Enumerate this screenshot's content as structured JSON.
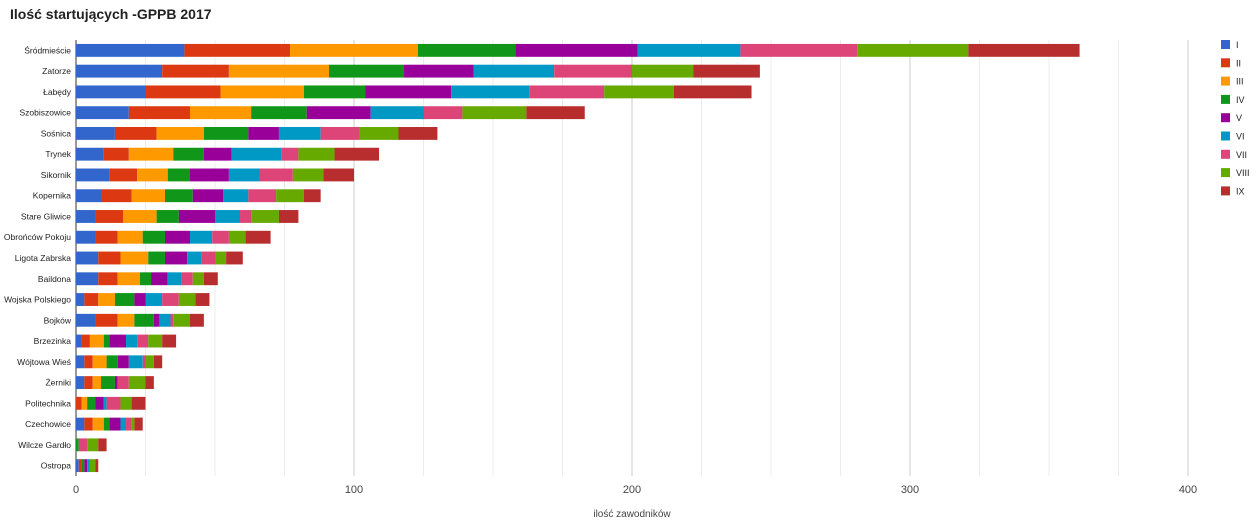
{
  "chart_data": {
    "type": "bar",
    "orientation": "horizontal",
    "stacked": true,
    "title": "Ilość startujących -GPPB 2017",
    "xlabel": "ilość zawodników",
    "ylabel": "",
    "xlim": [
      0,
      400
    ],
    "xticks": [
      0,
      100,
      200,
      300,
      400
    ],
    "minor_grid_step": 25,
    "grid": true,
    "legend_position": "right",
    "categories": [
      "Śródmieście",
      "Zatorze",
      "Łabędy",
      "Szobiszowice",
      "Sośnica",
      "Trynek",
      "Sikornik",
      "Kopernika",
      "Stare Gliwice",
      "Obrońców Pokoju",
      "Ligota Zabrska",
      "Baildona",
      "Wojska Polskiego",
      "Bojków",
      "Brzezinka",
      "Wójtowa Wieś",
      "Żerniki",
      "Politechnika",
      "Czechowice",
      "Wilcze Gardło",
      "Ostropa"
    ],
    "series": [
      {
        "name": "I",
        "color": "#3366cc",
        "values": [
          39,
          31,
          25,
          19,
          14,
          10,
          12,
          9,
          7,
          7,
          8,
          8,
          3,
          7,
          2,
          3,
          3,
          0,
          3,
          0,
          1
        ]
      },
      {
        "name": "II",
        "color": "#dc3912",
        "values": [
          38,
          24,
          27,
          22,
          15,
          9,
          10,
          11,
          10,
          8,
          8,
          7,
          5,
          8,
          3,
          3,
          3,
          2,
          3,
          0,
          1
        ]
      },
      {
        "name": "III",
        "color": "#ff9900",
        "values": [
          46,
          36,
          30,
          22,
          17,
          16,
          11,
          12,
          12,
          9,
          10,
          8,
          6,
          6,
          5,
          5,
          3,
          2,
          4,
          0,
          0
        ]
      },
      {
        "name": "IV",
        "color": "#109618",
        "values": [
          35,
          27,
          22,
          20,
          16,
          11,
          8,
          10,
          8,
          8,
          6,
          4,
          7,
          7,
          2,
          4,
          5,
          3,
          2,
          1,
          1
        ]
      },
      {
        "name": "V",
        "color": "#990099",
        "values": [
          44,
          25,
          31,
          23,
          11,
          10,
          14,
          11,
          13,
          9,
          8,
          6,
          4,
          2,
          6,
          4,
          1,
          3,
          4,
          0,
          1
        ]
      },
      {
        "name": "VI",
        "color": "#0099c6",
        "values": [
          37,
          29,
          28,
          19,
          15,
          18,
          11,
          9,
          9,
          8,
          5,
          5,
          6,
          4,
          4,
          5,
          0,
          1,
          2,
          0,
          1
        ]
      },
      {
        "name": "VII",
        "color": "#dd4477",
        "values": [
          42,
          28,
          27,
          14,
          14,
          6,
          12,
          10,
          4,
          6,
          5,
          4,
          6,
          1,
          4,
          1,
          4,
          5,
          2,
          3,
          0
        ]
      },
      {
        "name": "VIII",
        "color": "#66aa00",
        "values": [
          40,
          22,
          25,
          23,
          14,
          13,
          11,
          10,
          10,
          6,
          4,
          4,
          6,
          6,
          5,
          3,
          6,
          4,
          1,
          4,
          2
        ]
      },
      {
        "name": "IX",
        "color": "#b82e2e",
        "values": [
          40,
          24,
          28,
          21,
          14,
          16,
          11,
          6,
          7,
          9,
          6,
          5,
          5,
          5,
          5,
          3,
          3,
          5,
          3,
          3,
          1
        ]
      }
    ]
  }
}
